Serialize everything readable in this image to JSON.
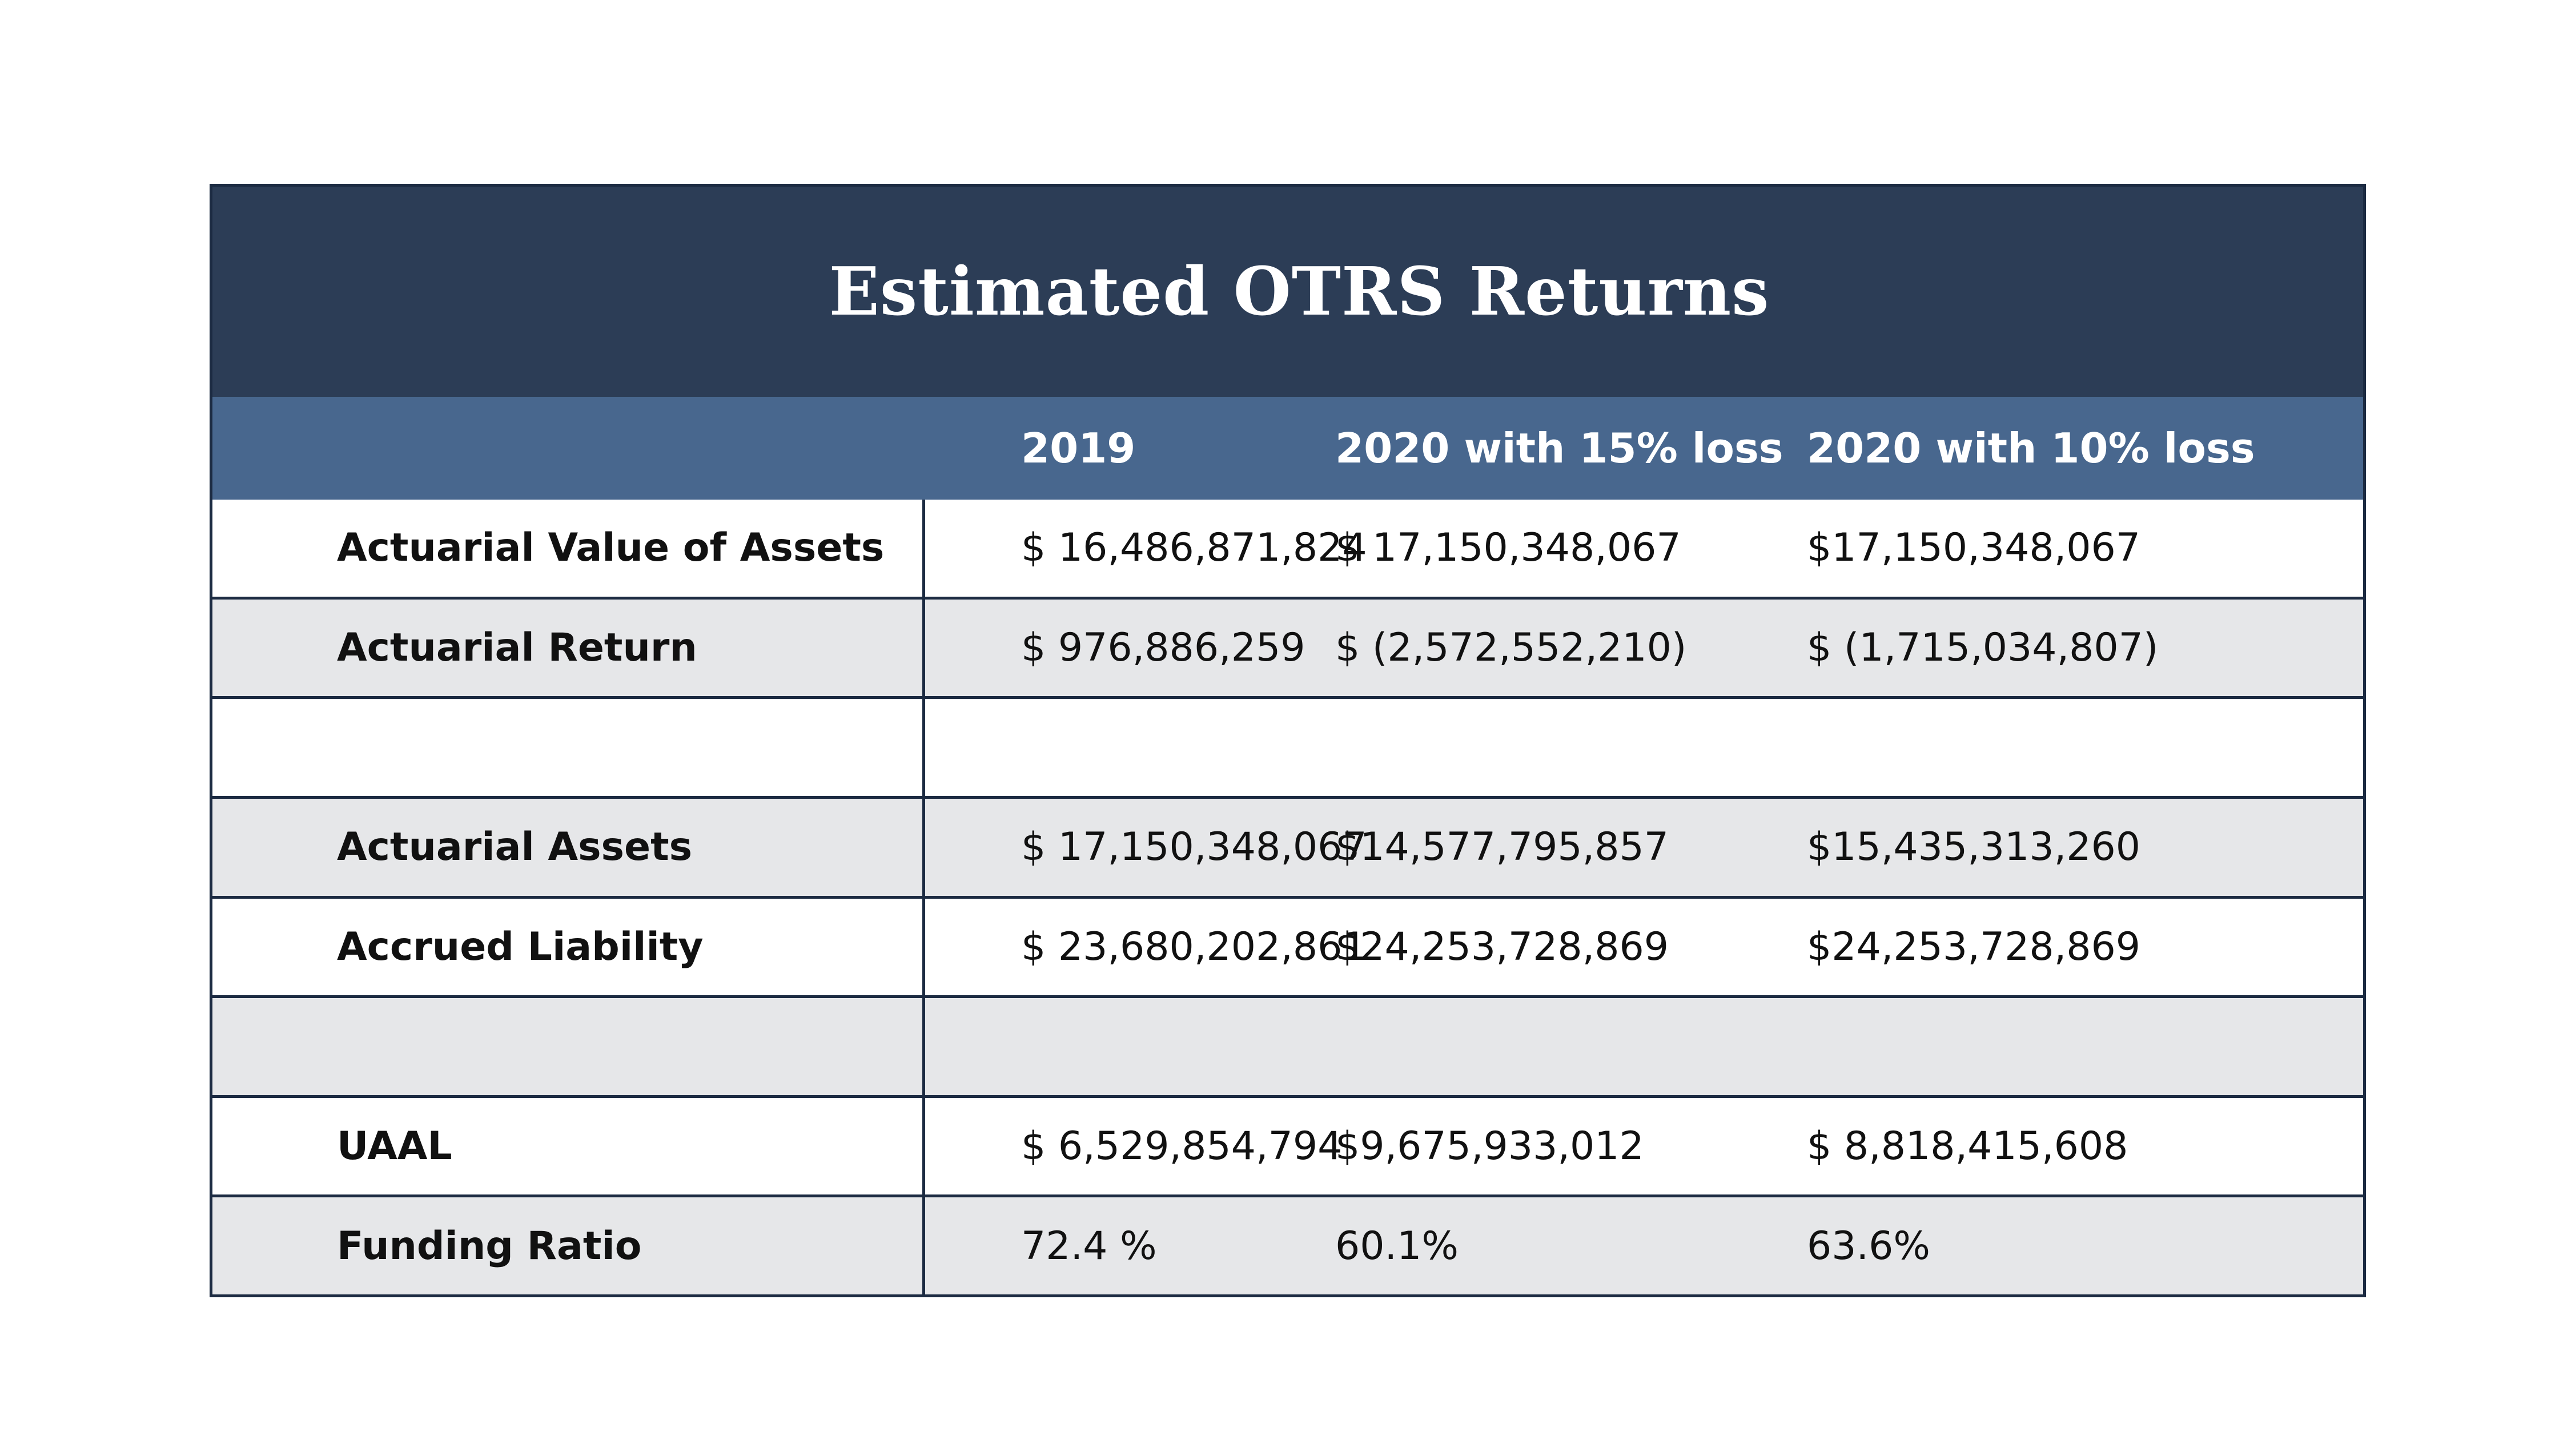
{
  "title": "Estimated OTRS Returns",
  "columns": [
    "",
    "2019",
    "2020 with 15% loss",
    "2020 with 10% loss"
  ],
  "rows": [
    {
      "label": "Actuarial Value of Assets",
      "v2019": "$ 16,486,871,824",
      "v15": "$ 17,150,348,067",
      "v10": "$17,150,348,067"
    },
    {
      "label": "Actuarial Return",
      "v2019": "$ 976,886,259",
      "v15": "$ (2,572,552,210)",
      "v10": "$ (1,715,034,807)"
    },
    {
      "label": "",
      "v2019": "",
      "v15": "",
      "v10": ""
    },
    {
      "label": "Actuarial Assets",
      "v2019": "$ 17,150,348,067",
      "v15": "$14,577,795,857",
      "v10": "$15,435,313,260"
    },
    {
      "label": "Accrued Liability",
      "v2019": "$ 23,680,202,861",
      "v15": "$24,253,728,869",
      "v10": "$24,253,728,869"
    },
    {
      "label": "",
      "v2019": "",
      "v15": "",
      "v10": ""
    },
    {
      "label": "UAAL",
      "v2019": "$ 6,529,854,794",
      "v15": "$9,675,933,012",
      "v10": "$ 8,818,415,608"
    },
    {
      "label": "Funding Ratio",
      "v2019": "72.4 %",
      "v15": "60.1%",
      "v10": "63.6%"
    }
  ],
  "colors": {
    "title_band": "#2c3d56",
    "header_band": "#48678e",
    "shaded_row": "#e6e7e9",
    "border": "#1c2b42"
  }
}
